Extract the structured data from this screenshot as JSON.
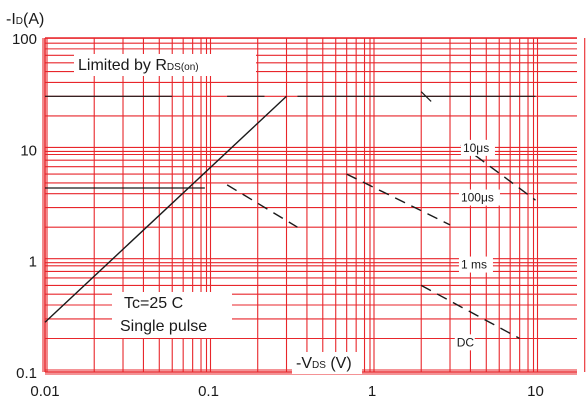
{
  "chart_data": {
    "type": "line",
    "title": "",
    "ylabel": {
      "prefix": "-I",
      "sub": "D",
      "suffix": "(A)"
    },
    "xlabel": {
      "prefix": "-V",
      "sub": "DS",
      "suffix": " (V)"
    },
    "x_scale": "log",
    "y_scale": "log",
    "xlim": [
      0.01,
      20
    ],
    "ylim": [
      0.1,
      100
    ],
    "x_tick_labels": [
      "0.01",
      "0.1",
      "1",
      "10"
    ],
    "y_tick_labels": [
      "0.1",
      "1",
      "10",
      "100"
    ],
    "grid": true,
    "grid_color": "#e8262b",
    "line_color": "#1a1a1a",
    "rds_label": {
      "prefix": "Limited by R",
      "sub": "DS(on)"
    },
    "conditions": [
      "Tc=25 C",
      "Single pulse"
    ],
    "series": [
      {
        "name": "Limited by RDS(on)",
        "style": "solid",
        "points": [
          [
            0.01,
            0.28
          ],
          [
            0.3,
            30
          ]
        ]
      },
      {
        "name": "10μs",
        "style": "dashed",
        "points": [
          [
            3.5,
            11
          ],
          [
            10,
            3.5
          ]
        ]
      },
      {
        "name": "100μs",
        "style": "dashed",
        "points": [
          [
            0.7,
            6
          ],
          [
            3,
            2.1
          ]
        ]
      },
      {
        "name": "1ms",
        "style": "dashed",
        "points": [
          [
            0.13,
            4.8
          ],
          [
            0.35,
            2
          ]
        ]
      },
      {
        "name": "DC",
        "style": "dashed",
        "points": [
          [
            2,
            0.6
          ],
          [
            8,
            0.2
          ]
        ]
      }
    ],
    "annotations": [
      {
        "text": "10μs",
        "x": 3.6,
        "y": 9.5
      },
      {
        "text": "100μs",
        "x": 3.5,
        "y": 3.4
      },
      {
        "text": "1 ms",
        "x": 3.5,
        "y": 0.85
      },
      {
        "text": "DC",
        "x": 3.3,
        "y": 0.17
      }
    ],
    "current_limit_segments": [
      {
        "y": 30,
        "from": 0.01,
        "to": 0.06
      },
      {
        "y": 30,
        "from": 0.13,
        "to": 0.22
      },
      {
        "y": 30,
        "from": 0.35,
        "to": 10
      }
    ],
    "short_dash": {
      "points": [
        [
          2,
          33
        ],
        [
          2.3,
          27
        ]
      ]
    },
    "lower_solid_segment": {
      "y": 4.5,
      "from": 0.01,
      "to": 0.095
    }
  }
}
